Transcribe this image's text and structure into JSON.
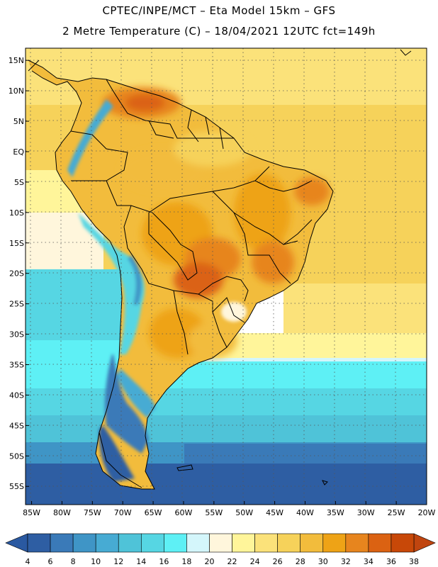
{
  "header": {
    "line1": "CPTEC/INPE/MCT –   Eta Model 15km – GFS",
    "line2": "2 Metre Temperature (C) – 18/04/2021 12UTC fct=149h"
  },
  "map": {
    "region": "South America",
    "lat_range": [
      -58,
      17
    ],
    "lon_range": [
      -86,
      -20
    ],
    "lat_labels": [
      "15N",
      "10N",
      "5N",
      "EQ",
      "5S",
      "10S",
      "15S",
      "20S",
      "25S",
      "30S",
      "35S",
      "40S",
      "45S",
      "50S",
      "55S"
    ],
    "lat_values": [
      15,
      10,
      5,
      0,
      -5,
      -10,
      -15,
      -20,
      -25,
      -30,
      -35,
      -40,
      -45,
      -50,
      -55
    ],
    "lon_labels": [
      "85W",
      "80W",
      "75W",
      "70W",
      "65W",
      "60W",
      "55W",
      "50W",
      "45W",
      "40W",
      "35W",
      "30W",
      "25W",
      "20W"
    ],
    "lon_values": [
      -85,
      -80,
      -75,
      -70,
      -65,
      -60,
      -55,
      -50,
      -45,
      -40,
      -35,
      -30,
      -25,
      -20
    ]
  },
  "colorbar": {
    "labels": [
      "4",
      "6",
      "8",
      "10",
      "12",
      "14",
      "16",
      "18",
      "20",
      "22",
      "24",
      "26",
      "28",
      "30",
      "32",
      "34",
      "36",
      "38"
    ],
    "colors": [
      "#2e5ea3",
      "#3a7ab8",
      "#3f95c6",
      "#47abd3",
      "#4fc3d8",
      "#56d6e3",
      "#5ef0f5",
      "#d4f6fb",
      "#fff6dc",
      "#fff59a",
      "#fbe27a",
      "#f6d25a",
      "#f2bc3c",
      "#eea316",
      "#e7851e",
      "#db6212",
      "#c84808"
    ],
    "low_color": "#2a59a1",
    "high_color": "#c0450f"
  }
}
